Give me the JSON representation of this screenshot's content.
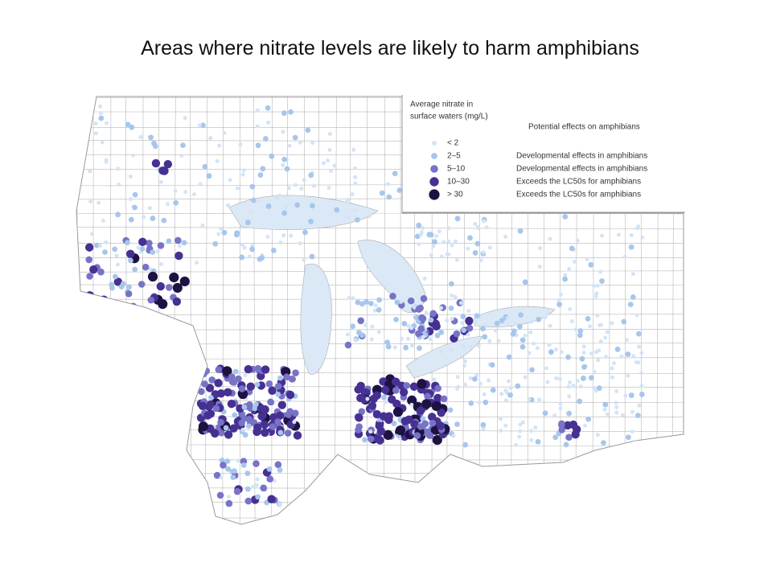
{
  "title": "Areas where nitrate levels are likely to harm amphibians",
  "legend": {
    "title_lines": [
      "Average nitrate in",
      "surface waters (mg/L)"
    ],
    "effects_header": "Potential effects on amphibians",
    "items": [
      {
        "label": "< 2",
        "color": "#d3e4f6"
      },
      {
        "label": "2–5",
        "effect": "Developmental effects in amphibians",
        "color": "#a7c6ec"
      },
      {
        "label": "5–10",
        "effect": "Developmental effects in amphibians",
        "color": "#7773c6"
      },
      {
        "label": "10–30",
        "effect": "Exceeds the LC50s for amphibians",
        "color": "#463092"
      },
      {
        "label": "> 30",
        "effect": "Exceeds the LC50s for amphibians",
        "color": "#1e1242"
      }
    ]
  }
}
